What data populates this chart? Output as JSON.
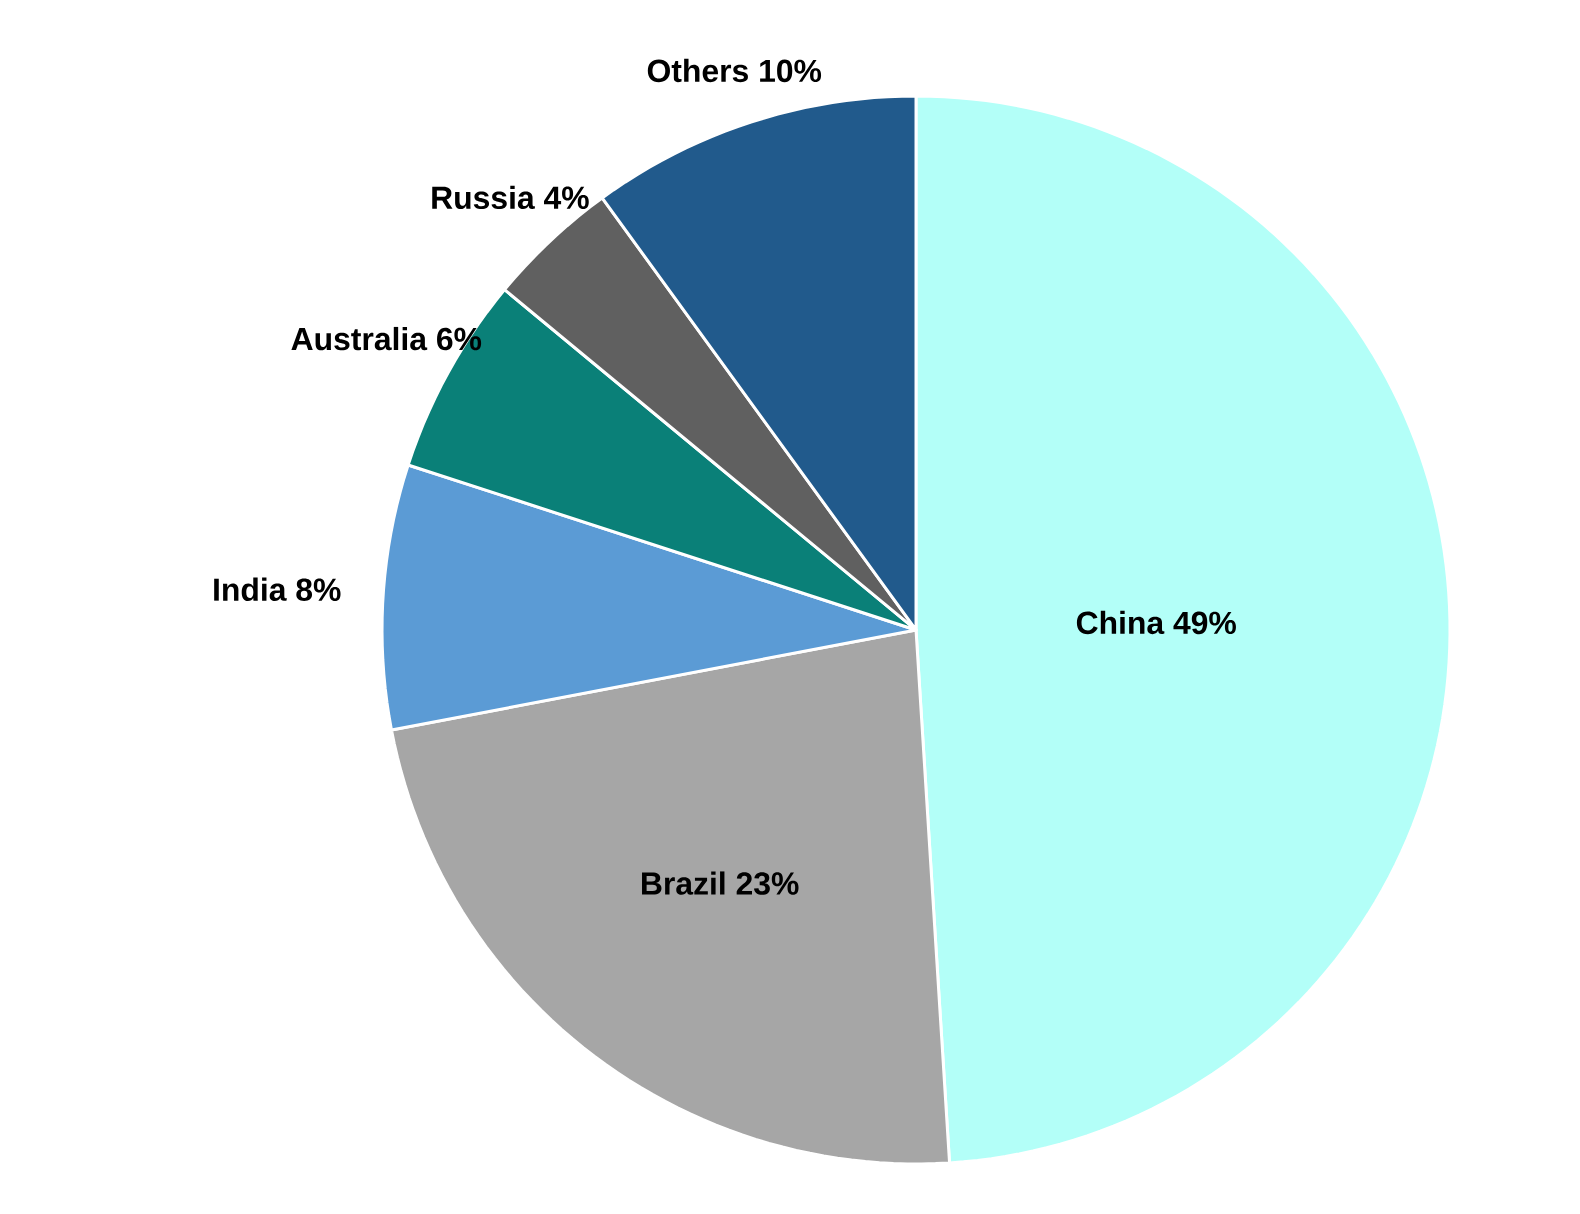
{
  "chart_data": {
    "type": "pie",
    "categories": [
      "China",
      "Brazil",
      "India",
      "Australia",
      "Russia",
      "Others"
    ],
    "values": [
      49,
      23,
      8,
      6,
      4,
      10
    ],
    "value_labels": [
      "49%",
      "23%",
      "8%",
      "6%",
      "4%",
      "10%"
    ],
    "colors": [
      "#b3fff8",
      "#a6a6a6",
      "#5b9bd5",
      "#0a8078",
      "#606060",
      "#215a8c"
    ]
  }
}
